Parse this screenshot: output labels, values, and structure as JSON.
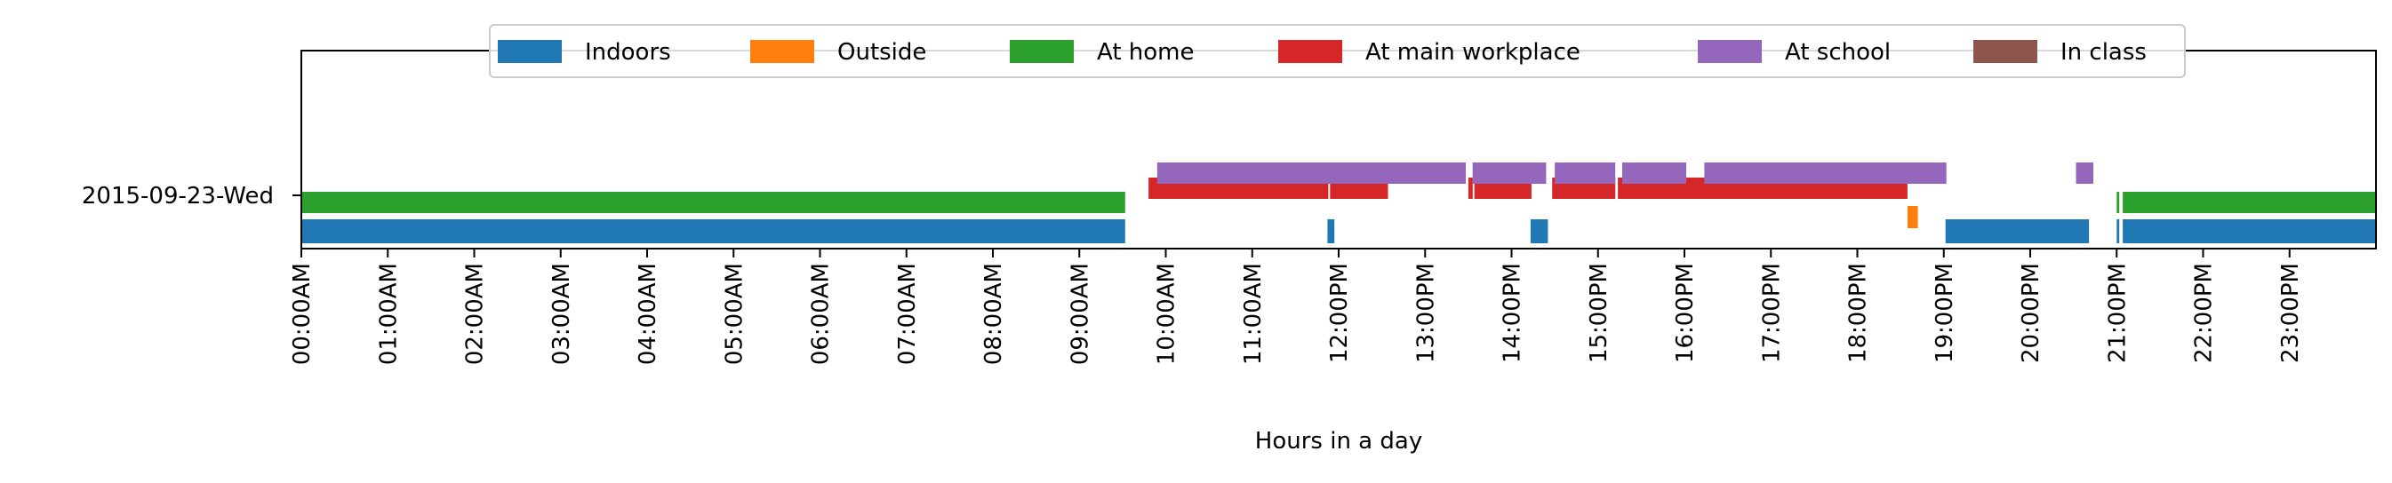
{
  "chart_data": {
    "type": "timeline",
    "xlabel": "Hours in a day",
    "xlim": [
      0,
      24
    ],
    "day_label": "2015-09-23-Wed",
    "x_ticks": [
      {
        "value": 0,
        "label": "00:00AM"
      },
      {
        "value": 1,
        "label": "01:00AM"
      },
      {
        "value": 2,
        "label": "02:00AM"
      },
      {
        "value": 3,
        "label": "03:00AM"
      },
      {
        "value": 4,
        "label": "04:00AM"
      },
      {
        "value": 5,
        "label": "05:00AM"
      },
      {
        "value": 6,
        "label": "06:00AM"
      },
      {
        "value": 7,
        "label": "07:00AM"
      },
      {
        "value": 8,
        "label": "08:00AM"
      },
      {
        "value": 9,
        "label": "09:00AM"
      },
      {
        "value": 10,
        "label": "10:00AM"
      },
      {
        "value": 11,
        "label": "11:00AM"
      },
      {
        "value": 12,
        "label": "12:00PM"
      },
      {
        "value": 13,
        "label": "13:00PM"
      },
      {
        "value": 14,
        "label": "14:00PM"
      },
      {
        "value": 15,
        "label": "15:00PM"
      },
      {
        "value": 16,
        "label": "16:00PM"
      },
      {
        "value": 17,
        "label": "17:00PM"
      },
      {
        "value": 18,
        "label": "18:00PM"
      },
      {
        "value": 19,
        "label": "19:00PM"
      },
      {
        "value": 20,
        "label": "20:00PM"
      },
      {
        "value": 21,
        "label": "21:00PM"
      },
      {
        "value": 22,
        "label": "22:00PM"
      },
      {
        "value": 23,
        "label": "23:00PM"
      }
    ],
    "legend_position": "top-center",
    "series": [
      {
        "name": "Indoors",
        "color": "#1f77b4",
        "intervals": [
          [
            0.0,
            9.53
          ],
          [
            11.87,
            11.95
          ],
          [
            14.22,
            14.42
          ],
          [
            19.02,
            20.68
          ],
          [
            21.0,
            21.03
          ],
          [
            21.07,
            24.0
          ]
        ]
      },
      {
        "name": "Outside",
        "color": "#ff7f0e",
        "intervals": [
          [
            18.58,
            18.7
          ]
        ]
      },
      {
        "name": "At home",
        "color": "#2ca02c",
        "intervals": [
          [
            0.0,
            9.53
          ],
          [
            21.0,
            21.03
          ],
          [
            21.07,
            24.0
          ]
        ]
      },
      {
        "name": "At main workplace",
        "color": "#d62728",
        "intervals": [
          [
            9.8,
            11.88
          ],
          [
            11.9,
            12.57
          ],
          [
            13.5,
            13.55
          ],
          [
            13.57,
            14.23
          ],
          [
            14.47,
            15.2
          ],
          [
            15.23,
            18.58
          ]
        ]
      },
      {
        "name": "At school",
        "color": "#9467bd",
        "intervals": [
          [
            9.9,
            13.47
          ],
          [
            13.55,
            14.4
          ],
          [
            14.5,
            15.2
          ],
          [
            15.28,
            16.02
          ],
          [
            16.23,
            19.03
          ],
          [
            20.53,
            20.73
          ]
        ]
      },
      {
        "name": "In class",
        "color": "#8c564b",
        "intervals": []
      }
    ]
  }
}
